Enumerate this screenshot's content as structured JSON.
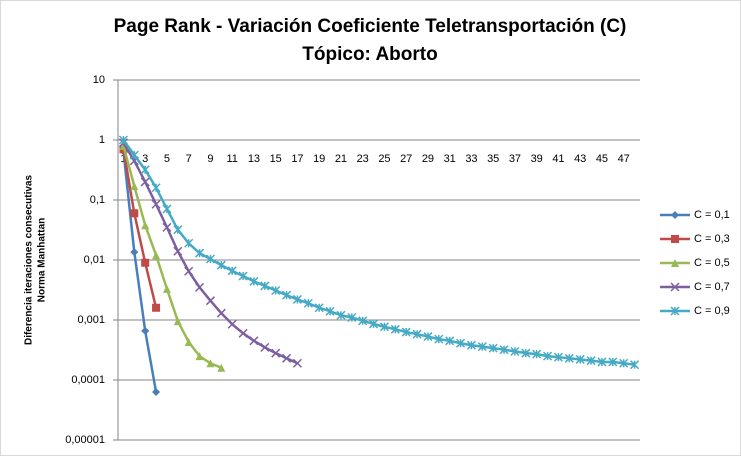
{
  "chart_data": {
    "type": "line",
    "title": "Page Rank - Variación Coeficiente Teletransportación (C)",
    "subtitle": "Tópico: Aborto",
    "ylabel": [
      "Diferencia iteraciones consecutivas",
      "Norma Manhattan"
    ],
    "log_y": true,
    "grid": true,
    "legend": "right",
    "xaxis_at": 1,
    "ylim": [
      1e-05,
      10
    ],
    "yticks": [
      10,
      1,
      {
        "value": 0.1,
        "label": "0,1"
      },
      {
        "value": 0.01,
        "label": "0,01"
      },
      {
        "value": 0.001,
        "label": "0,001"
      },
      {
        "value": 0.0001,
        "label": "0,0001"
      },
      {
        "value": 1e-05,
        "label": "0,00001"
      }
    ],
    "categories": [
      1,
      null,
      3,
      null,
      5,
      null,
      7,
      null,
      9,
      null,
      11,
      null,
      13,
      null,
      15,
      null,
      17,
      null,
      19,
      null,
      21,
      null,
      23,
      null,
      25,
      null,
      27,
      null,
      29,
      null,
      31,
      null,
      33,
      null,
      35,
      null,
      37,
      null,
      39,
      null,
      41,
      null,
      43,
      null,
      45,
      null,
      47,
      null
    ],
    "series": [
      {
        "name": "C = 0,1",
        "color": "#4a7ebb",
        "marker": "diamond",
        "values": [
          0.65,
          0.0135,
          0.00066,
          6.3e-05,
          null,
          null,
          null,
          null,
          null,
          null,
          null,
          null,
          null,
          null,
          null,
          null,
          null,
          null,
          null,
          null,
          null,
          null,
          null,
          null,
          null,
          null,
          null,
          null,
          null,
          null,
          null,
          null,
          null,
          null,
          null,
          null,
          null,
          null,
          null,
          null,
          null,
          null,
          null,
          null,
          null,
          null,
          null,
          null
        ]
      },
      {
        "name": "C = 0,3",
        "color": "#be4b48",
        "marker": "square",
        "values": [
          0.7,
          0.06,
          0.009,
          0.0016,
          null,
          null,
          null,
          null,
          null,
          null,
          null,
          null,
          null,
          null,
          null,
          null,
          null,
          null,
          null,
          null,
          null,
          null,
          null,
          null,
          null,
          null,
          null,
          null,
          null,
          null,
          null,
          null,
          null,
          null,
          null,
          null,
          null,
          null,
          null,
          null,
          null,
          null,
          null,
          null,
          null,
          null,
          null,
          null
        ]
      },
      {
        "name": "C = 0,5",
        "color": "#98b954",
        "marker": "triangle",
        "values": [
          0.8,
          0.17,
          0.038,
          0.012,
          0.0033,
          0.00096,
          0.00043,
          0.00025,
          0.00019,
          0.00016,
          null,
          null,
          null,
          null,
          null,
          null,
          null,
          null,
          null,
          null,
          null,
          null,
          null,
          null,
          null,
          null,
          null,
          null,
          null,
          null,
          null,
          null,
          null,
          null,
          null,
          null,
          null,
          null,
          null,
          null,
          null,
          null,
          null,
          null,
          null,
          null,
          null,
          null
        ]
      },
      {
        "name": "C = 0,7",
        "color": "#7d5fa0",
        "marker": "x",
        "values": [
          0.9,
          0.45,
          0.2,
          0.085,
          0.035,
          0.014,
          0.0065,
          0.0035,
          0.0021,
          0.0013,
          0.00085,
          0.0006,
          0.00045,
          0.00035,
          0.00028,
          0.00023,
          0.00019,
          null,
          null,
          null,
          null,
          null,
          null,
          null,
          null,
          null,
          null,
          null,
          null,
          null,
          null,
          null,
          null,
          null,
          null,
          null,
          null,
          null,
          null,
          null,
          null,
          null,
          null,
          null,
          null,
          null,
          null,
          null
        ]
      },
      {
        "name": "C = 0,9",
        "color": "#46aac5",
        "marker": "star",
        "values": [
          1,
          0.56,
          0.32,
          0.16,
          0.071,
          0.032,
          0.019,
          0.013,
          0.0104,
          0.0082,
          0.0066,
          0.0054,
          0.0044,
          0.0037,
          0.0031,
          0.0026,
          0.0022,
          0.0019,
          0.0016,
          0.0014,
          0.0012,
          0.0011,
          0.00097,
          0.00086,
          0.00077,
          0.0007,
          0.00063,
          0.00058,
          0.00053,
          0.00048,
          0.00045,
          0.00041,
          0.00038,
          0.00036,
          0.00034,
          0.00032,
          0.0003,
          0.00028,
          0.00027,
          0.00025,
          0.00024,
          0.00023,
          0.00022,
          0.00021,
          0.0002,
          0.0002,
          0.00019,
          0.00018
        ]
      }
    ]
  }
}
